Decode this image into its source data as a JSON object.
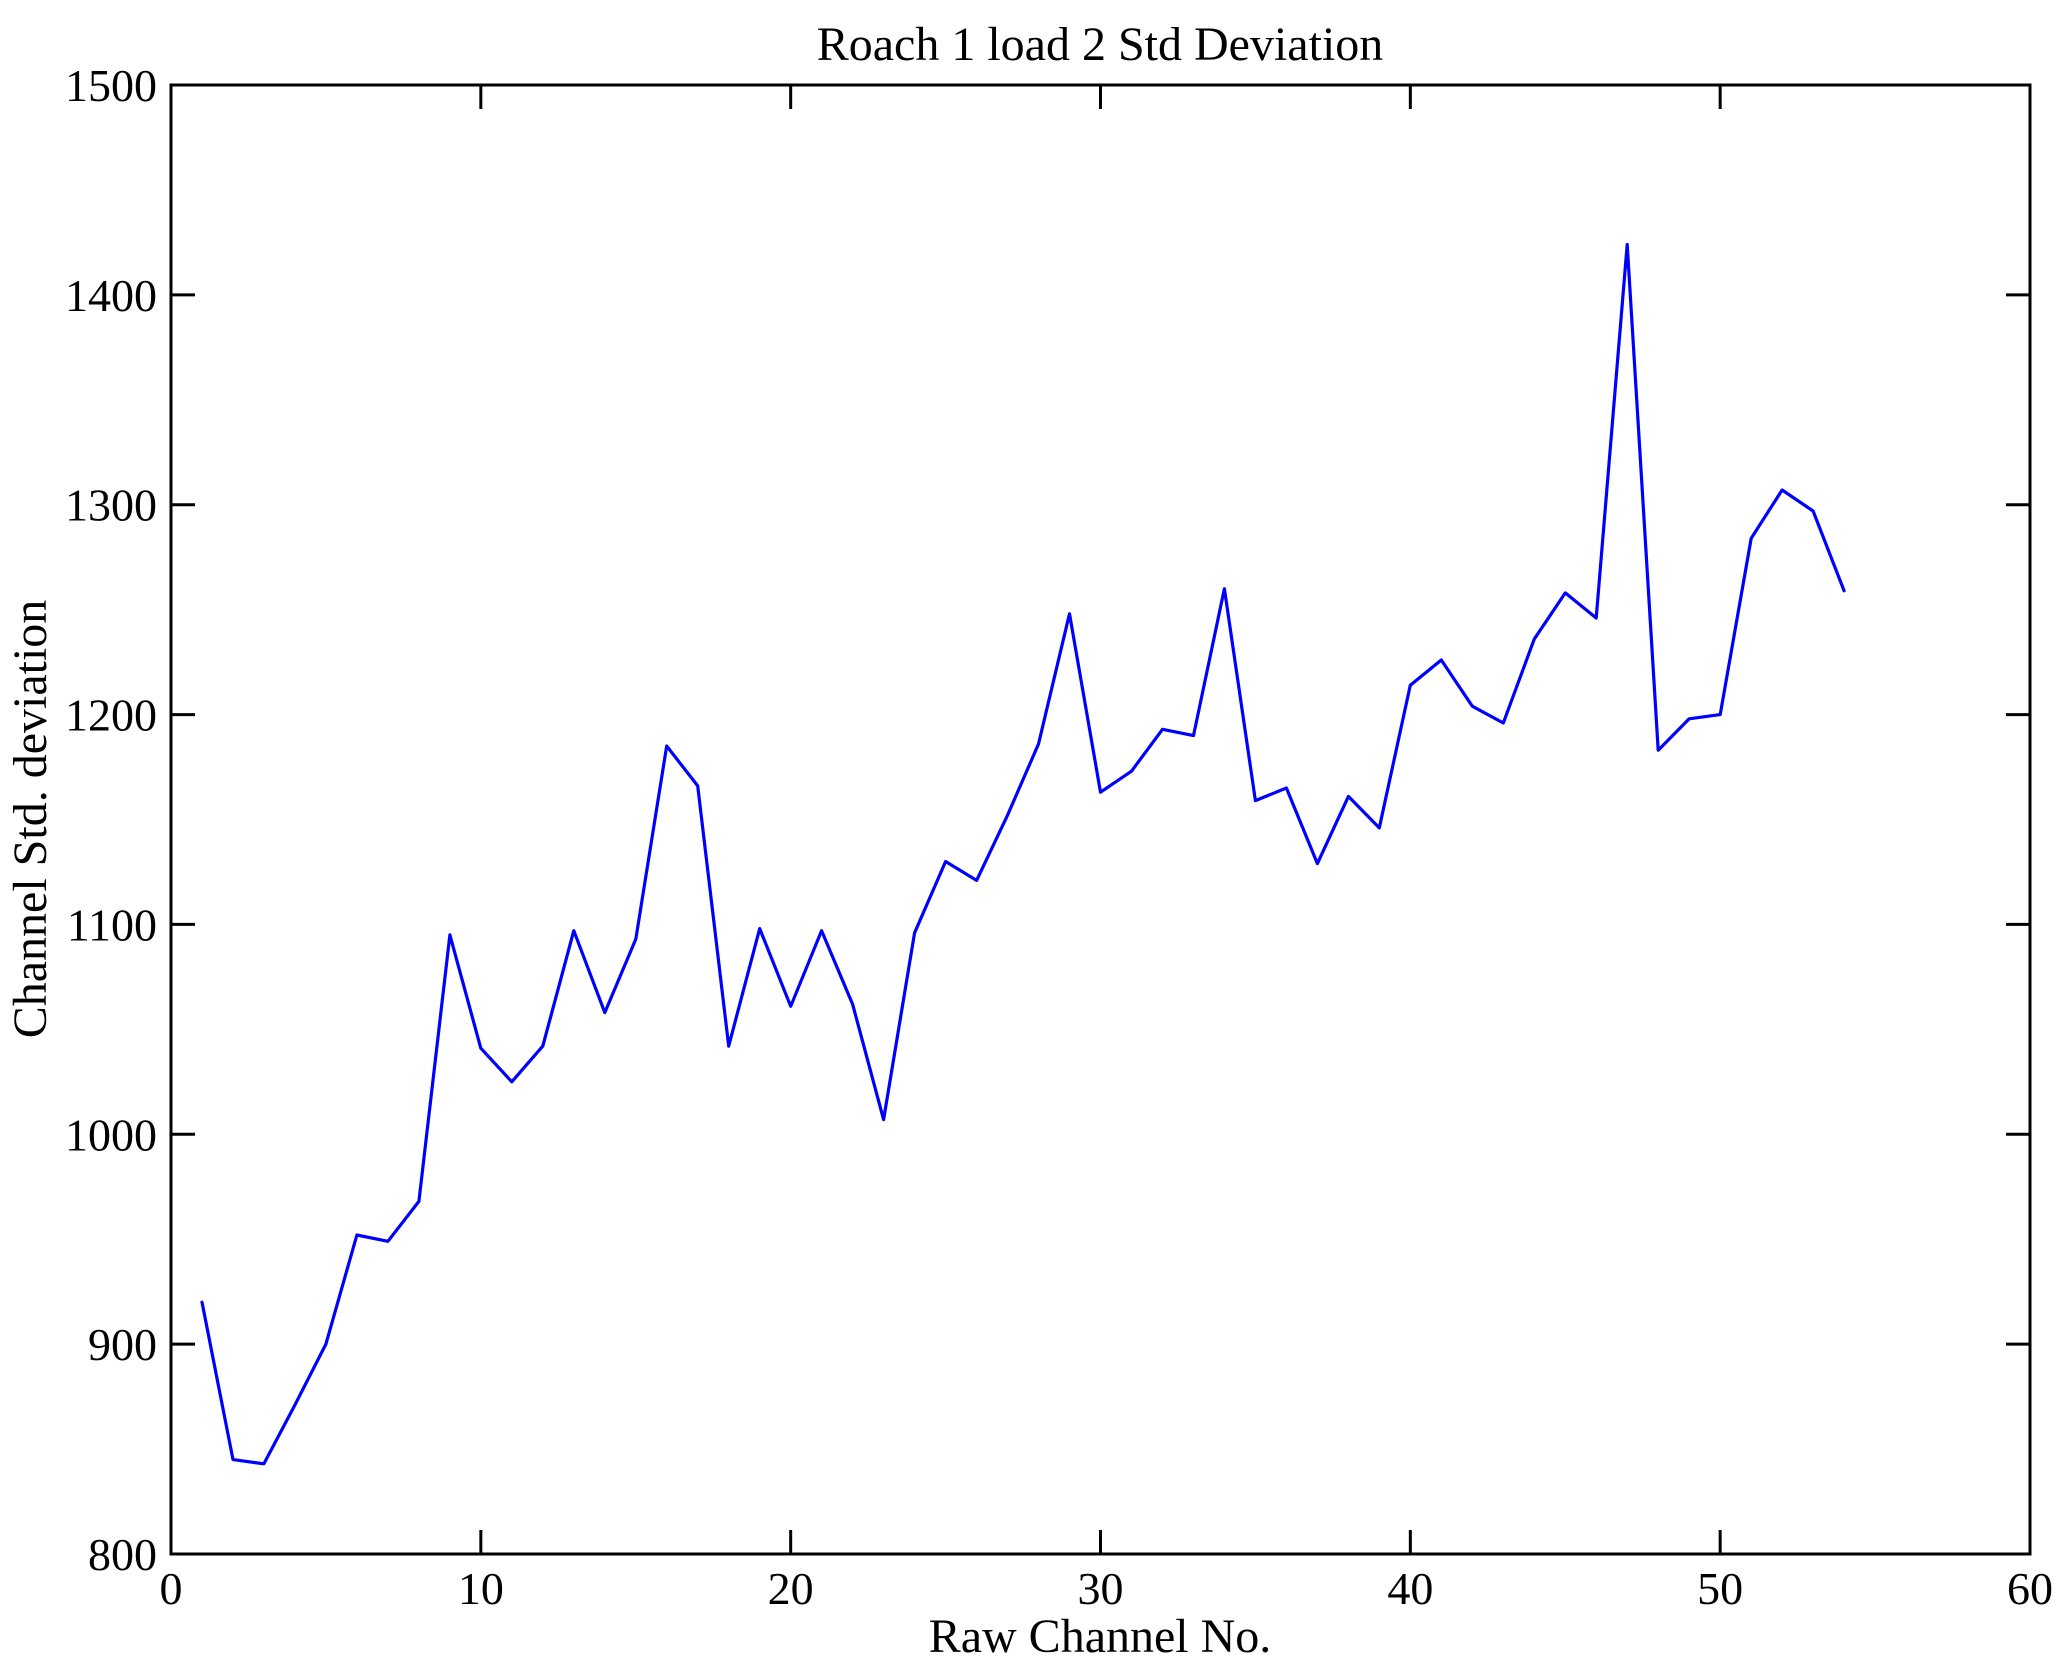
{
  "figure": {
    "background": "#ffffff"
  },
  "chart_data": {
    "type": "line",
    "title": "Roach 1 load 2 Std Deviation",
    "xlabel": "Raw Channel No.",
    "ylabel": "Channel Std. deviation",
    "xlim": [
      0,
      60
    ],
    "ylim": [
      800,
      1500
    ],
    "x_ticks": [
      0,
      10,
      20,
      30,
      40,
      50,
      60
    ],
    "y_ticks": [
      800,
      900,
      1000,
      1100,
      1200,
      1300,
      1400,
      1500
    ],
    "grid": false,
    "legend_position": "none",
    "line_color": "#0000FF",
    "axis_color": "#000000",
    "x": [
      1,
      2,
      3,
      4,
      5,
      6,
      7,
      8,
      9,
      10,
      11,
      12,
      13,
      14,
      15,
      16,
      17,
      18,
      19,
      20,
      21,
      22,
      23,
      24,
      25,
      26,
      27,
      28,
      29,
      30,
      31,
      32,
      33,
      34,
      35,
      36,
      37,
      38,
      39,
      40,
      41,
      42,
      43,
      44,
      45,
      46,
      47,
      48,
      49,
      50,
      51,
      52,
      53,
      54
    ],
    "values": [
      920,
      845,
      843,
      871,
      900,
      952,
      949,
      968,
      1095,
      1041,
      1025,
      1042,
      1097,
      1058,
      1093,
      1185,
      1166,
      1042,
      1098,
      1061,
      1097,
      1062,
      1007,
      1096,
      1130,
      1121,
      1152,
      1186,
      1248,
      1163,
      1173,
      1193,
      1190,
      1260,
      1159,
      1165,
      1129,
      1161,
      1146,
      1214,
      1226,
      1204,
      1196,
      1236,
      1258,
      1246,
      1424,
      1183,
      1198,
      1200,
      1284,
      1307,
      1297,
      1259
    ]
  }
}
